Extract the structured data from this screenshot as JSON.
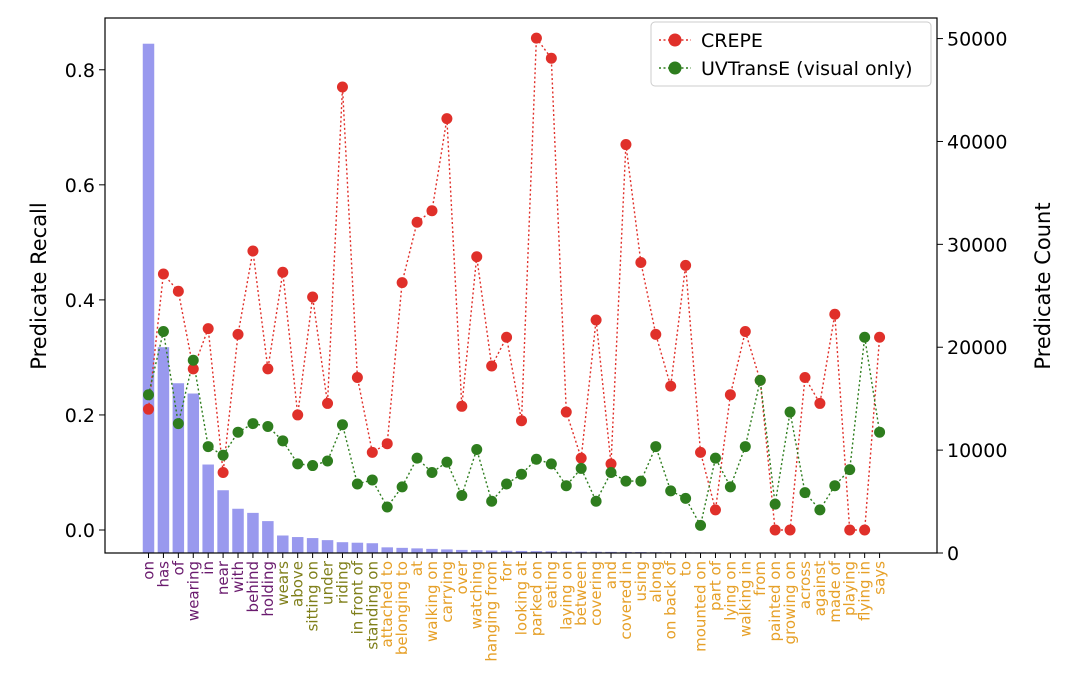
{
  "chart_data": {
    "type": "bar+line",
    "title": "",
    "ylabel_left": "Predicate Recall",
    "ylabel_right": "Predicate Count",
    "xlabel": "",
    "ylim_left": [
      -0.04,
      0.89
    ],
    "ylim_right": [
      0,
      52000
    ],
    "yticks_left": [
      "0.0",
      "0.2",
      "0.4",
      "0.6",
      "0.8"
    ],
    "yticks_right": [
      "0",
      "10000",
      "20000",
      "30000",
      "40000",
      "50000"
    ],
    "legend_position": "top-right",
    "categories": [
      "on",
      "has",
      "of",
      "wearing",
      "in",
      "near",
      "with",
      "behind",
      "holding",
      "wears",
      "above",
      "sitting on",
      "under",
      "riding",
      "in front of",
      "standing on",
      "attached to",
      "belonging to",
      "at",
      "walking on",
      "carrying",
      "over",
      "watching",
      "hanging from",
      "for",
      "looking at",
      "parked on",
      "eating",
      "laying on",
      "between",
      "covering",
      "and",
      "covered in",
      "using",
      "along",
      "on back of",
      "to",
      "mounted on",
      "part of",
      "lying on",
      "walking in",
      "from",
      "painted on",
      "growing on",
      "across",
      "against",
      "made of",
      "playing",
      "flying in",
      "says"
    ],
    "category_colors": [
      "#6a1b6e",
      "#6a1b6e",
      "#6a1b6e",
      "#6a1b6e",
      "#6a1b6e",
      "#6a1b6e",
      "#6a1b6e",
      "#6a1b6e",
      "#6a1b6e",
      "#7f7f1a",
      "#7f7f1a",
      "#7f7f1a",
      "#7f7f1a",
      "#7f7f1a",
      "#7f7f1a",
      "#7f7f1a",
      "#e6a028",
      "#e6a028",
      "#e6a028",
      "#e6a028",
      "#e6a028",
      "#e6a028",
      "#e6a028",
      "#e6a028",
      "#e6a028",
      "#e6a028",
      "#e6a028",
      "#e6a028",
      "#e6a028",
      "#e6a028",
      "#e6a028",
      "#e6a028",
      "#e6a028",
      "#e6a028",
      "#e6a028",
      "#e6a028",
      "#e6a028",
      "#e6a028",
      "#e6a028",
      "#e6a028",
      "#e6a028",
      "#e6a028",
      "#e6a028",
      "#e6a028",
      "#e6a028",
      "#e6a028",
      "#e6a028",
      "#e6a028",
      "#e6a028",
      "#e6a028"
    ],
    "bar_series": {
      "name": "Predicate Count",
      "axis": "right",
      "color": "#9999ee",
      "values": [
        49500,
        20000,
        16500,
        15500,
        8600,
        6100,
        4300,
        3900,
        3100,
        1700,
        1550,
        1450,
        1250,
        1050,
        1000,
        950,
        550,
        500,
        450,
        400,
        350,
        300,
        270,
        240,
        220,
        200,
        180,
        160,
        140,
        130,
        120,
        110,
        100,
        90,
        80,
        70,
        65,
        60,
        55,
        50,
        45,
        40,
        35,
        30,
        28,
        26,
        24,
        22,
        20,
        18
      ]
    },
    "series": [
      {
        "name": "CREPE",
        "axis": "left",
        "color": "#e0302a",
        "style": "dotted",
        "values": [
          0.21,
          0.445,
          0.415,
          0.28,
          0.35,
          0.1,
          0.34,
          0.485,
          0.28,
          0.448,
          0.2,
          0.405,
          0.22,
          0.77,
          0.265,
          0.135,
          0.15,
          0.43,
          0.535,
          0.555,
          0.715,
          0.215,
          0.475,
          0.285,
          0.335,
          0.19,
          0.855,
          0.82,
          0.205,
          0.125,
          0.365,
          0.115,
          0.67,
          0.465,
          0.34,
          0.25,
          0.46,
          0.135,
          0.035,
          0.235,
          0.345,
          0.26,
          0.0,
          0.0,
          0.265,
          0.22,
          0.375,
          0.0,
          0.0,
          0.335
        ]
      },
      {
        "name": "UVTransE (visual only)",
        "axis": "left",
        "color": "#2e7d1e",
        "style": "dotted",
        "values": [
          0.235,
          0.345,
          0.185,
          0.295,
          0.145,
          0.13,
          0.17,
          0.185,
          0.18,
          0.155,
          0.115,
          0.112,
          0.12,
          0.183,
          0.08,
          0.087,
          0.04,
          0.075,
          0.125,
          0.1,
          0.118,
          0.06,
          0.14,
          0.05,
          0.08,
          0.097,
          0.123,
          0.115,
          0.077,
          0.107,
          0.05,
          0.1,
          0.085,
          0.085,
          0.145,
          0.068,
          0.055,
          0.008,
          0.125,
          0.075,
          0.145,
          0.26,
          0.045,
          0.205,
          0.065,
          0.035,
          0.077,
          0.105,
          0.335,
          0.17
        ]
      }
    ]
  }
}
